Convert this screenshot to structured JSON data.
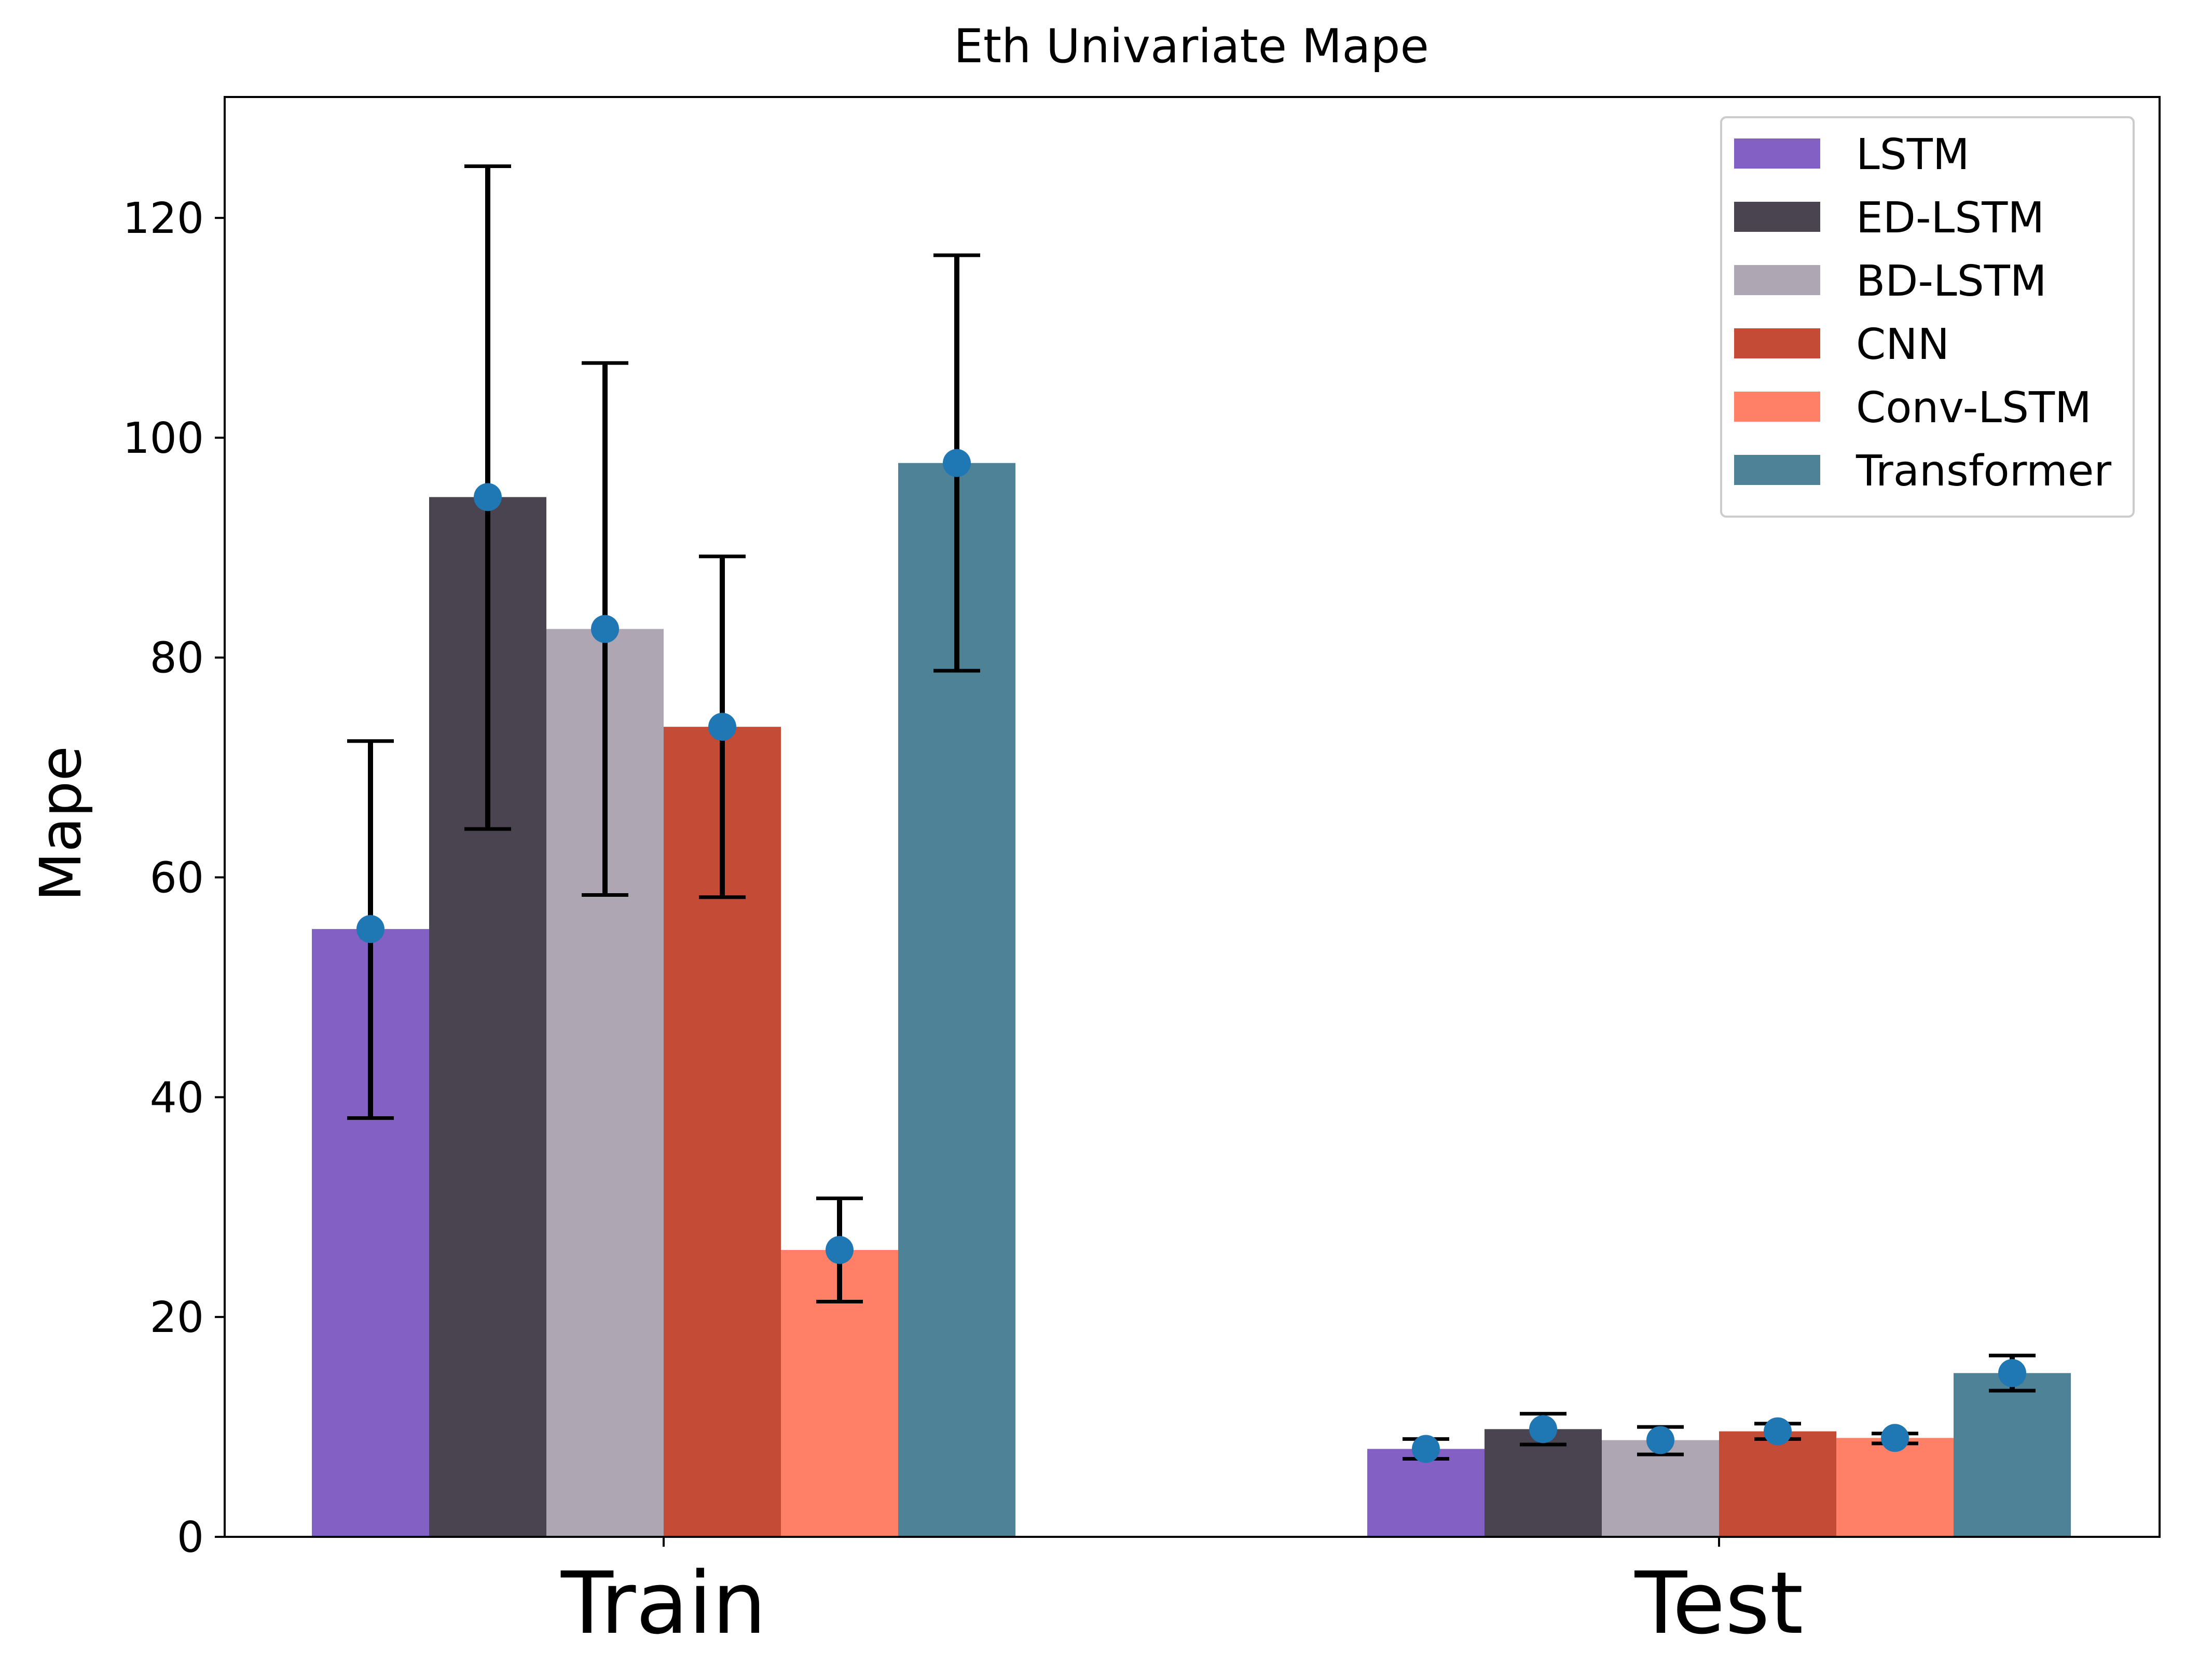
{
  "chart_data": {
    "type": "bar",
    "title": "Eth Univariate Mape",
    "xlabel": "",
    "ylabel": "Mape",
    "categories": [
      "Train",
      "Test"
    ],
    "ylim": [
      0,
      131
    ],
    "yticks": [
      0,
      20,
      40,
      60,
      80,
      100,
      120
    ],
    "legend_position": "top-right",
    "series": [
      {
        "name": "LSTM",
        "color": "#8360c3",
        "values": [
          55.3,
          8.0
        ],
        "err_low": [
          38.1,
          7.1
        ],
        "err_high": [
          72.4,
          8.9
        ]
      },
      {
        "name": "ED-LSTM",
        "color": "#4a4450",
        "values": [
          94.6,
          9.8
        ],
        "err_low": [
          64.4,
          8.4
        ],
        "err_high": [
          124.7,
          11.2
        ]
      },
      {
        "name": "BD-LSTM",
        "color": "#afa6b4",
        "values": [
          82.6,
          8.8
        ],
        "err_low": [
          58.4,
          7.5
        ],
        "err_high": [
          106.8,
          10.0
        ]
      },
      {
        "name": "CNN",
        "color": "#c44b35",
        "values": [
          73.7,
          9.6
        ],
        "err_low": [
          58.2,
          8.9
        ],
        "err_high": [
          89.2,
          10.3
        ]
      },
      {
        "name": "Conv-LSTM",
        "color": "#ff8066",
        "values": [
          26.1,
          9.0
        ],
        "err_low": [
          21.4,
          8.5
        ],
        "err_high": [
          30.8,
          9.4
        ]
      },
      {
        "name": "Transformer",
        "color": "#4e8296",
        "values": [
          97.7,
          14.9
        ],
        "err_low": [
          78.8,
          13.3
        ],
        "err_high": [
          116.6,
          16.5
        ]
      }
    ],
    "marker_color": "#1f77b4",
    "errorbar_color": "#000000"
  }
}
